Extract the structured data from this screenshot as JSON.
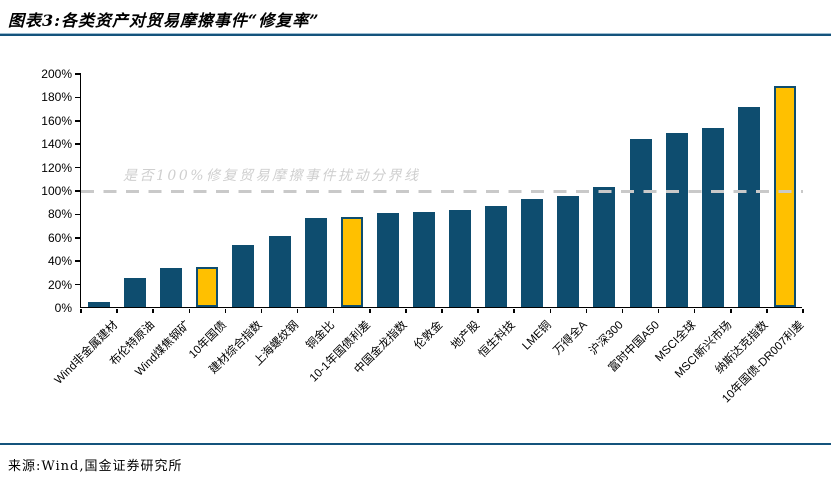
{
  "header": {
    "title": "图表3:各类资产对贸易摩擦事件“修复率”"
  },
  "footer": {
    "source": "来源:Wind,国金证券研究所"
  },
  "chart_data": {
    "type": "bar",
    "title": "各类资产对贸易摩擦事件“修复率”",
    "categories": [
      "Wind非金属建材",
      "布伦特原油",
      "Wind煤焦钢矿",
      "10年国债",
      "建材综合指数",
      "上海螺纹钢",
      "铜金比",
      "10-1年国债利差",
      "中国金龙指数",
      "伦敦金",
      "地产股",
      "恒生科技",
      "LME铜",
      "万得全A",
      "沪深300",
      "富时中国A50",
      "MSCI全球",
      "MSCI新兴市场",
      "纳斯达克指数",
      "10年国债-DR007利差"
    ],
    "values": [
      4,
      25,
      33,
      34,
      53,
      61,
      76,
      77,
      80,
      81,
      83,
      86,
      92,
      95,
      103,
      144,
      149,
      153,
      171,
      189
    ],
    "highlight_indices": [
      3,
      7,
      19
    ],
    "ylim": [
      0,
      200
    ],
    "ytick_step": 20,
    "ytick_suffix": "%",
    "grid": false,
    "legend": "none",
    "reference_line": {
      "value": 100,
      "label": "是否100%修复贸易摩擦事件扰动分界线"
    },
    "colors": {
      "bar": "#0E4D6F",
      "highlight_fill": "#FFC000",
      "highlight_border": "#0E4D6F",
      "reference_dash": "#C9C9C9",
      "reference_label": "#CFCFCF",
      "axis": "#000000"
    }
  }
}
